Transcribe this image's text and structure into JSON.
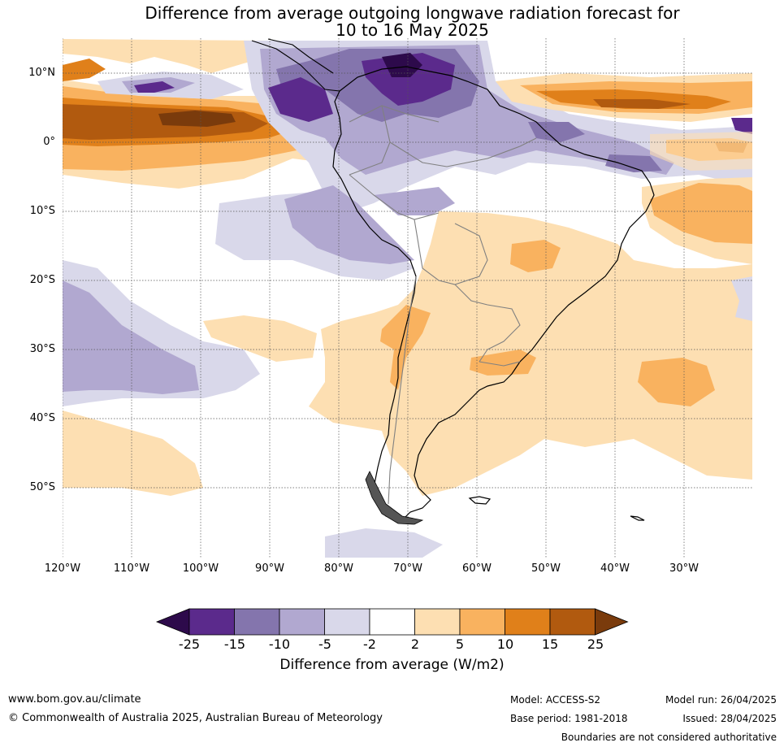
{
  "title": {
    "line1": "Difference from average outgoing longwave radiation forecast for",
    "line2": "10 to 16 May 2025"
  },
  "map": {
    "region": "South America",
    "lat_labels": [
      "10°N",
      "0°",
      "10°S",
      "20°S",
      "30°S",
      "40°S",
      "50°S"
    ],
    "lat_values": [
      10,
      0,
      -10,
      -20,
      -30,
      -40,
      -50
    ],
    "lon_labels": [
      "120°W",
      "110°W",
      "100°W",
      "90°W",
      "80°W",
      "70°W",
      "60°W",
      "50°W",
      "40°W",
      "30°W"
    ],
    "lon_values": [
      -120,
      -110,
      -100,
      -90,
      -80,
      -70,
      -60,
      -50,
      -40,
      -30
    ]
  },
  "colorbar": {
    "ticks": [
      "-25",
      "-15",
      "-10",
      "-5",
      "-2",
      "2",
      "5",
      "10",
      "15",
      "25"
    ],
    "colors": [
      "#2d0a4b",
      "#5b2a8c",
      "#8475ad",
      "#b1a8d0",
      "#d9d8ea",
      "#ffffff",
      "#fddfb2",
      "#f9b25f",
      "#e0801a",
      "#b15a0f",
      "#7a3b0c"
    ],
    "label": "Difference from average (W/m2)"
  },
  "footer": {
    "url": "www.bom.gov.au/climate",
    "copyright": "© Commonwealth of Australia 2025, Australian Bureau of Meteorology",
    "model": "Model: ACCESS-S2",
    "base_period": "Base period: 1981-2018",
    "model_run": "Model run: 26/04/2025",
    "issued": "Issued: 28/04/2025",
    "disclaimer": "Boundaries are not considered authoritative"
  }
}
